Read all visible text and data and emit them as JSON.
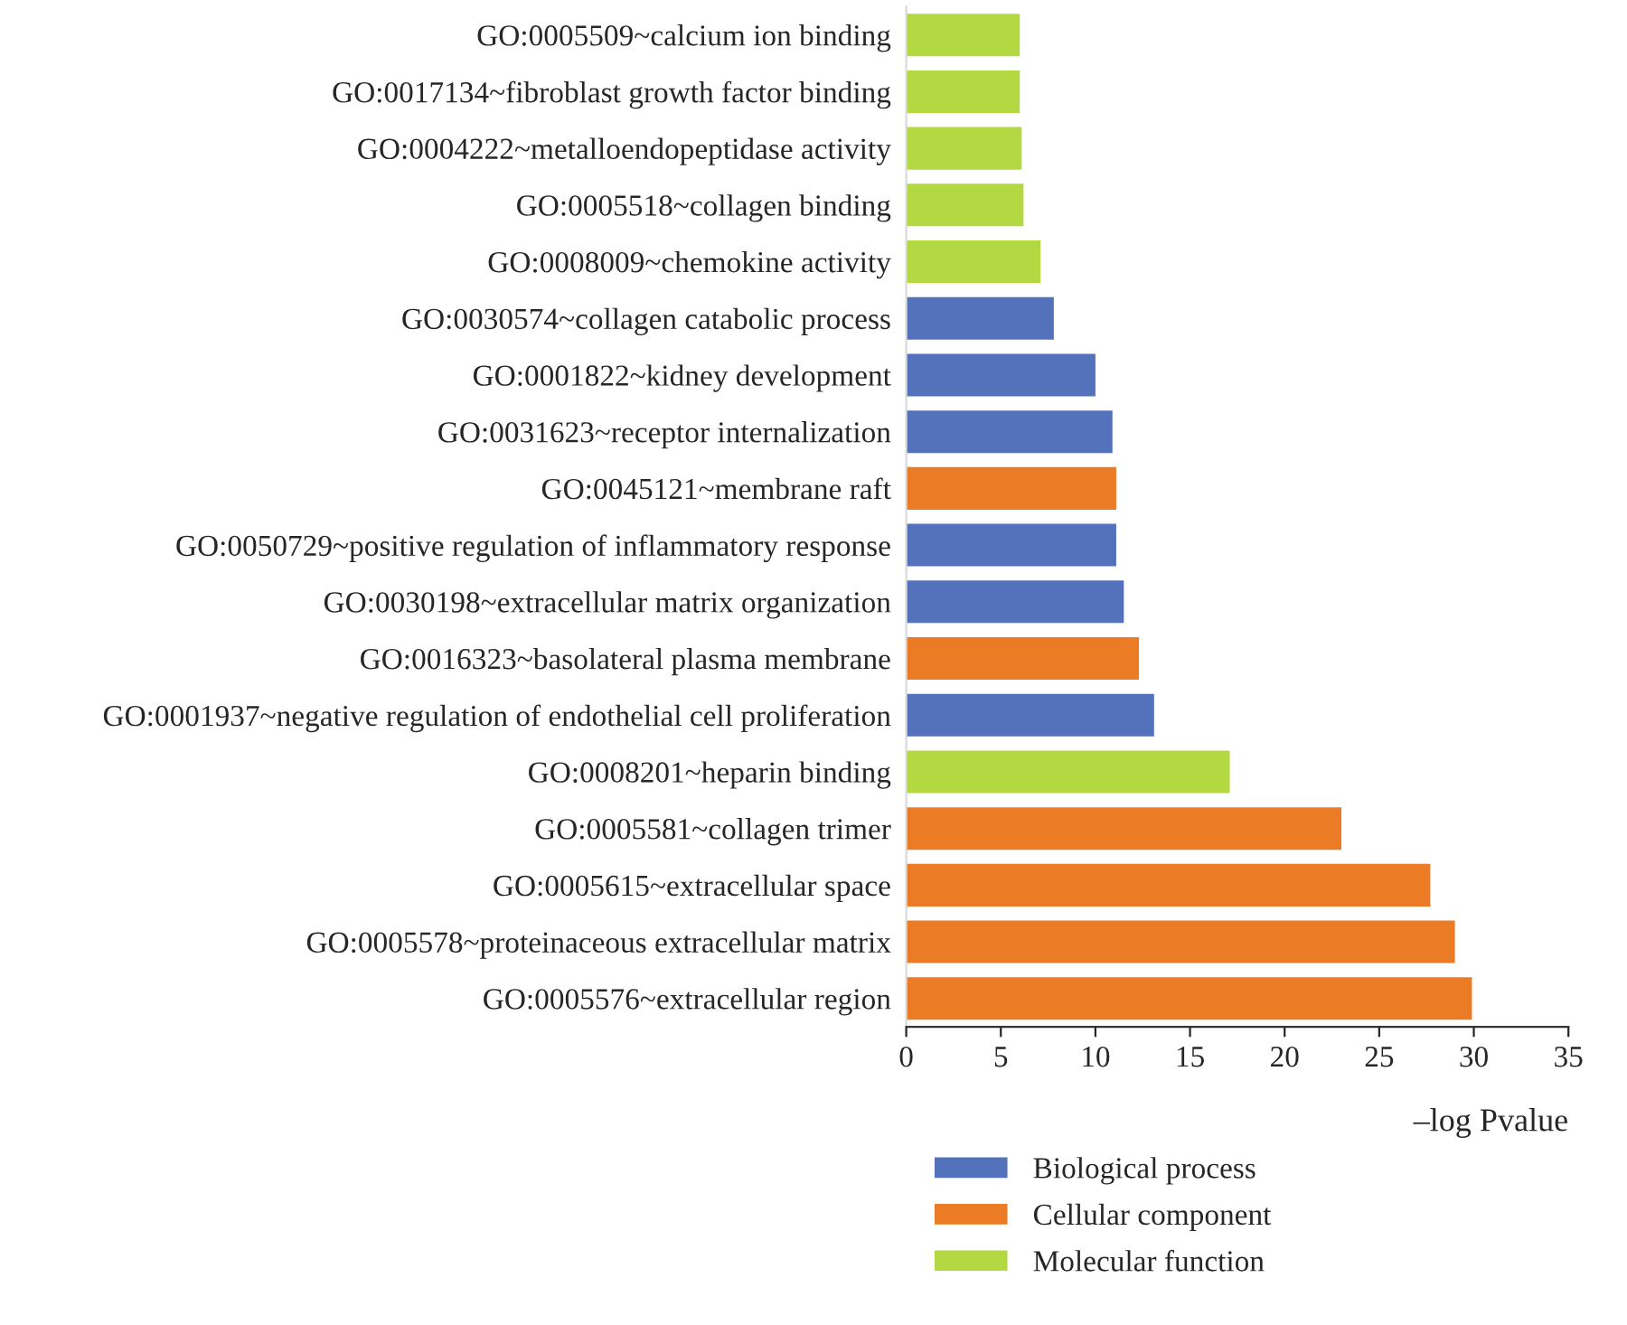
{
  "chart_data": {
    "type": "bar",
    "orientation": "horizontal",
    "xlabel": "–log Pvalue",
    "categories": [
      "GO:0005509~calcium ion binding",
      "GO:0017134~fibroblast growth factor binding",
      "GO:0004222~metalloendopeptidase activity",
      "GO:0005518~collagen binding",
      "GO:0008009~chemokine activity",
      "GO:0030574~collagen catabolic process",
      "GO:0001822~kidney development",
      "GO:0031623~receptor internalization",
      "GO:0045121~membrane raft",
      "GO:0050729~positive regulation of inflammatory response",
      "GO:0030198~extracellular matrix organization",
      "GO:0016323~basolateral plasma membrane",
      "GO:0001937~negative regulation of endothelial cell proliferation",
      "GO:0008201~heparin binding",
      "GO:0005581~collagen trimer",
      "GO:0005615~extracellular space",
      "GO:0005578~proteinaceous extracellular matrix",
      "GO:0005576~extracellular region"
    ],
    "series": [
      {
        "name": "Biological process",
        "color": "#5472bc",
        "values": [
          null,
          null,
          null,
          null,
          null,
          7.8,
          10.0,
          10.9,
          null,
          11.1,
          11.5,
          null,
          13.1,
          null,
          null,
          null,
          null,
          null
        ]
      },
      {
        "name": "Cellular component",
        "color": "#eb7b25",
        "values": [
          null,
          null,
          null,
          null,
          null,
          null,
          null,
          null,
          11.1,
          null,
          null,
          12.3,
          null,
          null,
          23.0,
          27.7,
          29.0,
          29.9
        ]
      },
      {
        "name": "Molecular function",
        "color": "#b3d942",
        "values": [
          6.0,
          6.0,
          6.1,
          6.2,
          7.1,
          null,
          null,
          null,
          null,
          null,
          null,
          null,
          null,
          17.1,
          null,
          null,
          null,
          null
        ]
      }
    ],
    "xlim": [
      0,
      35
    ],
    "xticks": [
      0,
      5,
      10,
      15,
      20,
      25,
      30,
      35
    ],
    "grid": false,
    "legend": "bottom"
  }
}
